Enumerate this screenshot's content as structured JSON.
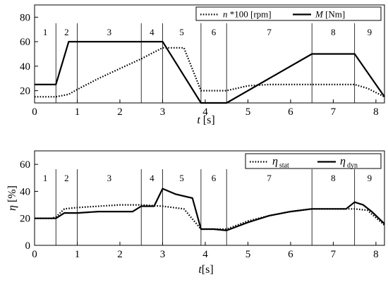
{
  "chart_data": [
    {
      "type": "line",
      "xlabel_var": "t",
      "xlabel_unit": " [s]",
      "ylabel": "",
      "xlim": [
        0,
        8.2
      ],
      "ylim": [
        10,
        90
      ],
      "xticks": [
        0,
        1,
        2,
        3,
        4,
        5,
        6,
        7,
        8
      ],
      "yticks": [
        20,
        40,
        60,
        80
      ],
      "grid": false,
      "legend_position": "top-right",
      "phase_boundaries": [
        0.5,
        1.0,
        2.5,
        3.0,
        3.9,
        4.5,
        6.5,
        7.5
      ],
      "phase_labels": [
        {
          "label": "1",
          "x": 0.25
        },
        {
          "label": "2",
          "x": 0.75
        },
        {
          "label": "3",
          "x": 1.75
        },
        {
          "label": "4",
          "x": 2.75
        },
        {
          "label": "5",
          "x": 3.45
        },
        {
          "label": "6",
          "x": 4.2
        },
        {
          "label": "7",
          "x": 5.5
        },
        {
          "label": "8",
          "x": 7.0
        },
        {
          "label": "9",
          "x": 7.85
        }
      ],
      "series": [
        {
          "name_var": "n",
          "name_rest": " *100 [rpm]",
          "style": "dotted",
          "x": [
            0,
            0.5,
            0.8,
            1.0,
            1.5,
            2.0,
            2.5,
            3.0,
            3.5,
            3.9,
            4.5,
            5.0,
            5.5,
            6.0,
            6.5,
            7.0,
            7.5,
            7.8,
            8.2
          ],
          "y": [
            15,
            15,
            17,
            21,
            30,
            38,
            46,
            55,
            55,
            20,
            20,
            24,
            25,
            25,
            25,
            25,
            25,
            22,
            15
          ]
        },
        {
          "name_var": "M",
          "name_rest": "  [Nm]",
          "style": "solid",
          "x": [
            0,
            0.5,
            0.8,
            1.0,
            2.5,
            3.0,
            3.9,
            4.5,
            6.5,
            7.5,
            8.2
          ],
          "y": [
            25,
            25,
            60,
            60,
            60,
            60,
            10,
            10,
            50,
            50,
            15
          ]
        }
      ]
    },
    {
      "type": "line",
      "xlabel_var": "t",
      "xlabel_unit": "[s]",
      "ylabel_var": "η",
      "ylabel_unit": " [%]",
      "xlim": [
        0,
        8.2
      ],
      "ylim": [
        0,
        70
      ],
      "xticks": [
        0,
        1,
        2,
        3,
        4,
        5,
        6,
        7,
        8
      ],
      "yticks": [
        0,
        20,
        40,
        60
      ],
      "grid": false,
      "legend_position": "top-right",
      "phase_boundaries": [
        0.5,
        1.0,
        2.5,
        3.0,
        3.9,
        4.5,
        6.5,
        7.5
      ],
      "phase_labels": [
        {
          "label": "1",
          "x": 0.25
        },
        {
          "label": "2",
          "x": 0.75
        },
        {
          "label": "3",
          "x": 1.75
        },
        {
          "label": "4",
          "x": 2.75
        },
        {
          "label": "5",
          "x": 3.45
        },
        {
          "label": "6",
          "x": 4.2
        },
        {
          "label": "7",
          "x": 5.5
        },
        {
          "label": "8",
          "x": 7.0
        },
        {
          "label": "9",
          "x": 7.85
        }
      ],
      "series": [
        {
          "name_var": "η",
          "name_sub": "stat",
          "style": "dotted",
          "x": [
            0,
            0.4,
            0.5,
            0.7,
            1.0,
            1.5,
            2.0,
            2.5,
            3.0,
            3.5,
            3.9,
            4.2,
            4.5,
            5.0,
            5.5,
            6.0,
            6.5,
            7.0,
            7.5,
            7.8,
            8.2
          ],
          "y": [
            20,
            20,
            21,
            27,
            28,
            29,
            30,
            30,
            29,
            27,
            12,
            12,
            12,
            18,
            22,
            25,
            27,
            27,
            27,
            26,
            15
          ]
        },
        {
          "name_var": "η",
          "name_sub": "dyn",
          "style": "solid",
          "x": [
            0,
            0.4,
            0.5,
            0.7,
            1.0,
            1.5,
            2.0,
            2.3,
            2.5,
            2.8,
            3.0,
            3.3,
            3.7,
            3.9,
            4.2,
            4.5,
            5.0,
            5.5,
            6.0,
            6.5,
            7.0,
            7.3,
            7.5,
            7.7,
            7.9,
            8.2
          ],
          "y": [
            20,
            20,
            20,
            24,
            24,
            25,
            25,
            25,
            29,
            29,
            42,
            38,
            35,
            12,
            12,
            11,
            17,
            22,
            25,
            27,
            27,
            27,
            32,
            30,
            25,
            16
          ]
        }
      ]
    }
  ]
}
